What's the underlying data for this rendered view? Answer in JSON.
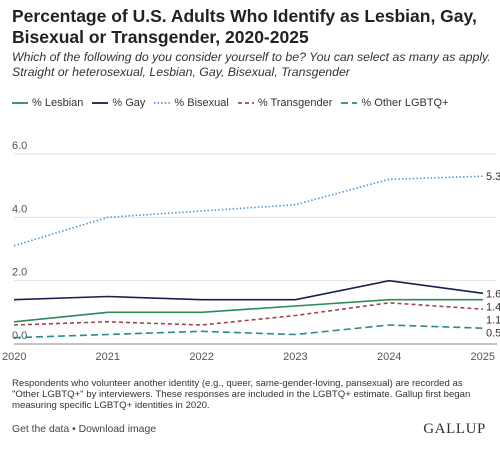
{
  "title": "Percentage of U.S. Adults Who Identify as Lesbian, Gay, Bisexual or Transgender, 2020-2025",
  "subtitle": "Which of the following do you consider yourself to be? You can select as many as apply. Straight or heterosexual, Lesbian, Gay, Bisexual, Transgender",
  "note": "Respondents who volunteer another identity (e.g., queer, same-gender-loving, pansexual) are recorded as \"Other LGBTQ+\" by interviewers. These responses are included in the LGBTQ+ estimate. Gallup first began measuring specific LGBTQ+ identities in 2020.",
  "footer": {
    "get_data": "Get the data",
    "separator": "•",
    "download": "Download image"
  },
  "brand": "GALLUP",
  "chart_data": {
    "type": "line",
    "x": [
      "2020",
      "2021",
      "2022",
      "2023",
      "2024",
      "2025"
    ],
    "ylim": [
      0,
      6.0
    ],
    "yticks": [
      "0.0",
      "2.0",
      "4.0",
      "6.0"
    ],
    "grid": true,
    "legend_position": "top",
    "series": [
      {
        "name": "% Lesbian",
        "values": [
          0.7,
          1.0,
          1.0,
          1.2,
          1.4,
          1.4
        ],
        "color": "#2e8b57",
        "dash": "solid",
        "end_label": "1.4"
      },
      {
        "name": "% Gay",
        "values": [
          1.4,
          1.5,
          1.4,
          1.4,
          2.0,
          1.6
        ],
        "color": "#1a1f4f",
        "dash": "solid",
        "end_label": "1.6"
      },
      {
        "name": "% Bisexual",
        "values": [
          3.1,
          4.0,
          4.2,
          4.4,
          5.2,
          5.3
        ],
        "color": "#4a8fd4",
        "dash": "dotted",
        "end_label": "5.3"
      },
      {
        "name": "% Transgender",
        "values": [
          0.6,
          0.7,
          0.6,
          0.9,
          1.3,
          1.1
        ],
        "color": "#a0464e",
        "dash": "dashed",
        "end_label": "1.1"
      },
      {
        "name": "% Other LGBTQ+",
        "values": [
          0.2,
          0.3,
          0.4,
          0.3,
          0.6,
          0.5
        ],
        "color": "#2a8a8f",
        "dash": "longdash",
        "end_label": "0.5"
      }
    ]
  }
}
